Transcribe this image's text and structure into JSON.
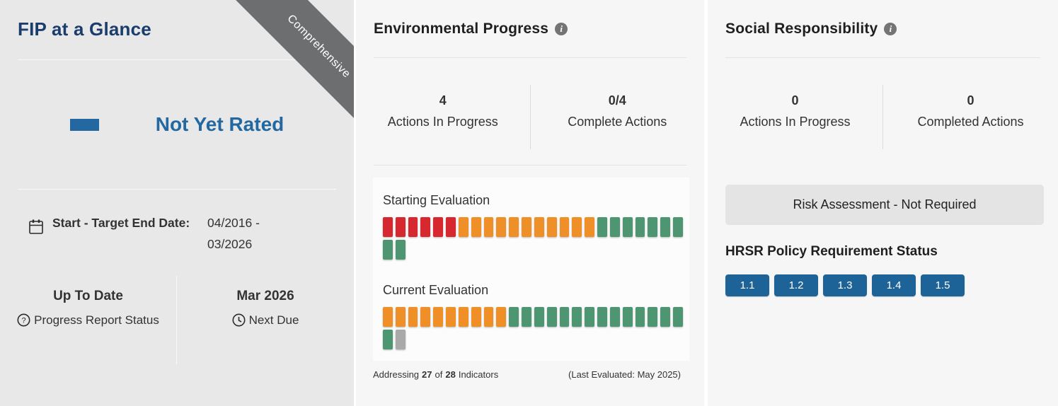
{
  "colors": {
    "left_panel_bg": "#e8e8e8",
    "panel_bg": "#f6f6f6",
    "ribbon_bg": "#6d6e70",
    "title_navy": "#1b3d6d",
    "rating_blue": "#2368a0",
    "badge_blue": "#1d6398",
    "indicator_red": "#d7282f",
    "indicator_orange": "#ee9027",
    "indicator_green": "#4e9572",
    "indicator_gray": "#a9a9a9",
    "risk_box_bg": "#e4e4e4"
  },
  "icons": {
    "info": "i",
    "question": "?"
  },
  "glance": {
    "title": "FIP at a Glance",
    "ribbon_label": "Comprehensive",
    "rating_label": "Not Yet Rated",
    "date_label": "Start - Target End Date:",
    "date_value": "04/2016 - 03/2026",
    "report_status_value": "Up To Date",
    "report_status_label": "Progress Report Status",
    "next_due_value": "Mar 2026",
    "next_due_label": "Next Due"
  },
  "environmental": {
    "title": "Environmental Progress",
    "stats": [
      {
        "value": "4",
        "label": "Actions In Progress"
      },
      {
        "value": "0/4",
        "label": "Complete Actions"
      }
    ],
    "evaluations": [
      {
        "label": "Starting Evaluation",
        "rows": [
          [
            {
              "color": "red",
              "count": 6
            },
            {
              "color": "orange",
              "count": 11
            },
            {
              "color": "green",
              "count": 7
            }
          ],
          [
            {
              "color": "green",
              "count": 2
            }
          ]
        ]
      },
      {
        "label": "Current Evaluation",
        "rows": [
          [
            {
              "color": "orange",
              "count": 10
            },
            {
              "color": "green",
              "count": 14
            }
          ],
          [
            {
              "color": "green",
              "count": 1
            },
            {
              "color": "gray",
              "count": 1
            }
          ]
        ]
      }
    ],
    "addressing": {
      "prefix": "Addressing",
      "count": "27",
      "of": "of",
      "total": "28",
      "suffix": "Indicators"
    },
    "last_evaluated": "(Last Evaluated: May 2025)"
  },
  "social": {
    "title": "Social Responsibility",
    "stats": [
      {
        "value": "0",
        "label": "Actions In Progress"
      },
      {
        "value": "0",
        "label": "Completed Actions"
      }
    ],
    "risk_label": "Risk Assessment - Not Required",
    "hrsr_title": "HRSR Policy Requirement Status",
    "badges": [
      "1.1",
      "1.2",
      "1.3",
      "1.4",
      "1.5"
    ]
  }
}
